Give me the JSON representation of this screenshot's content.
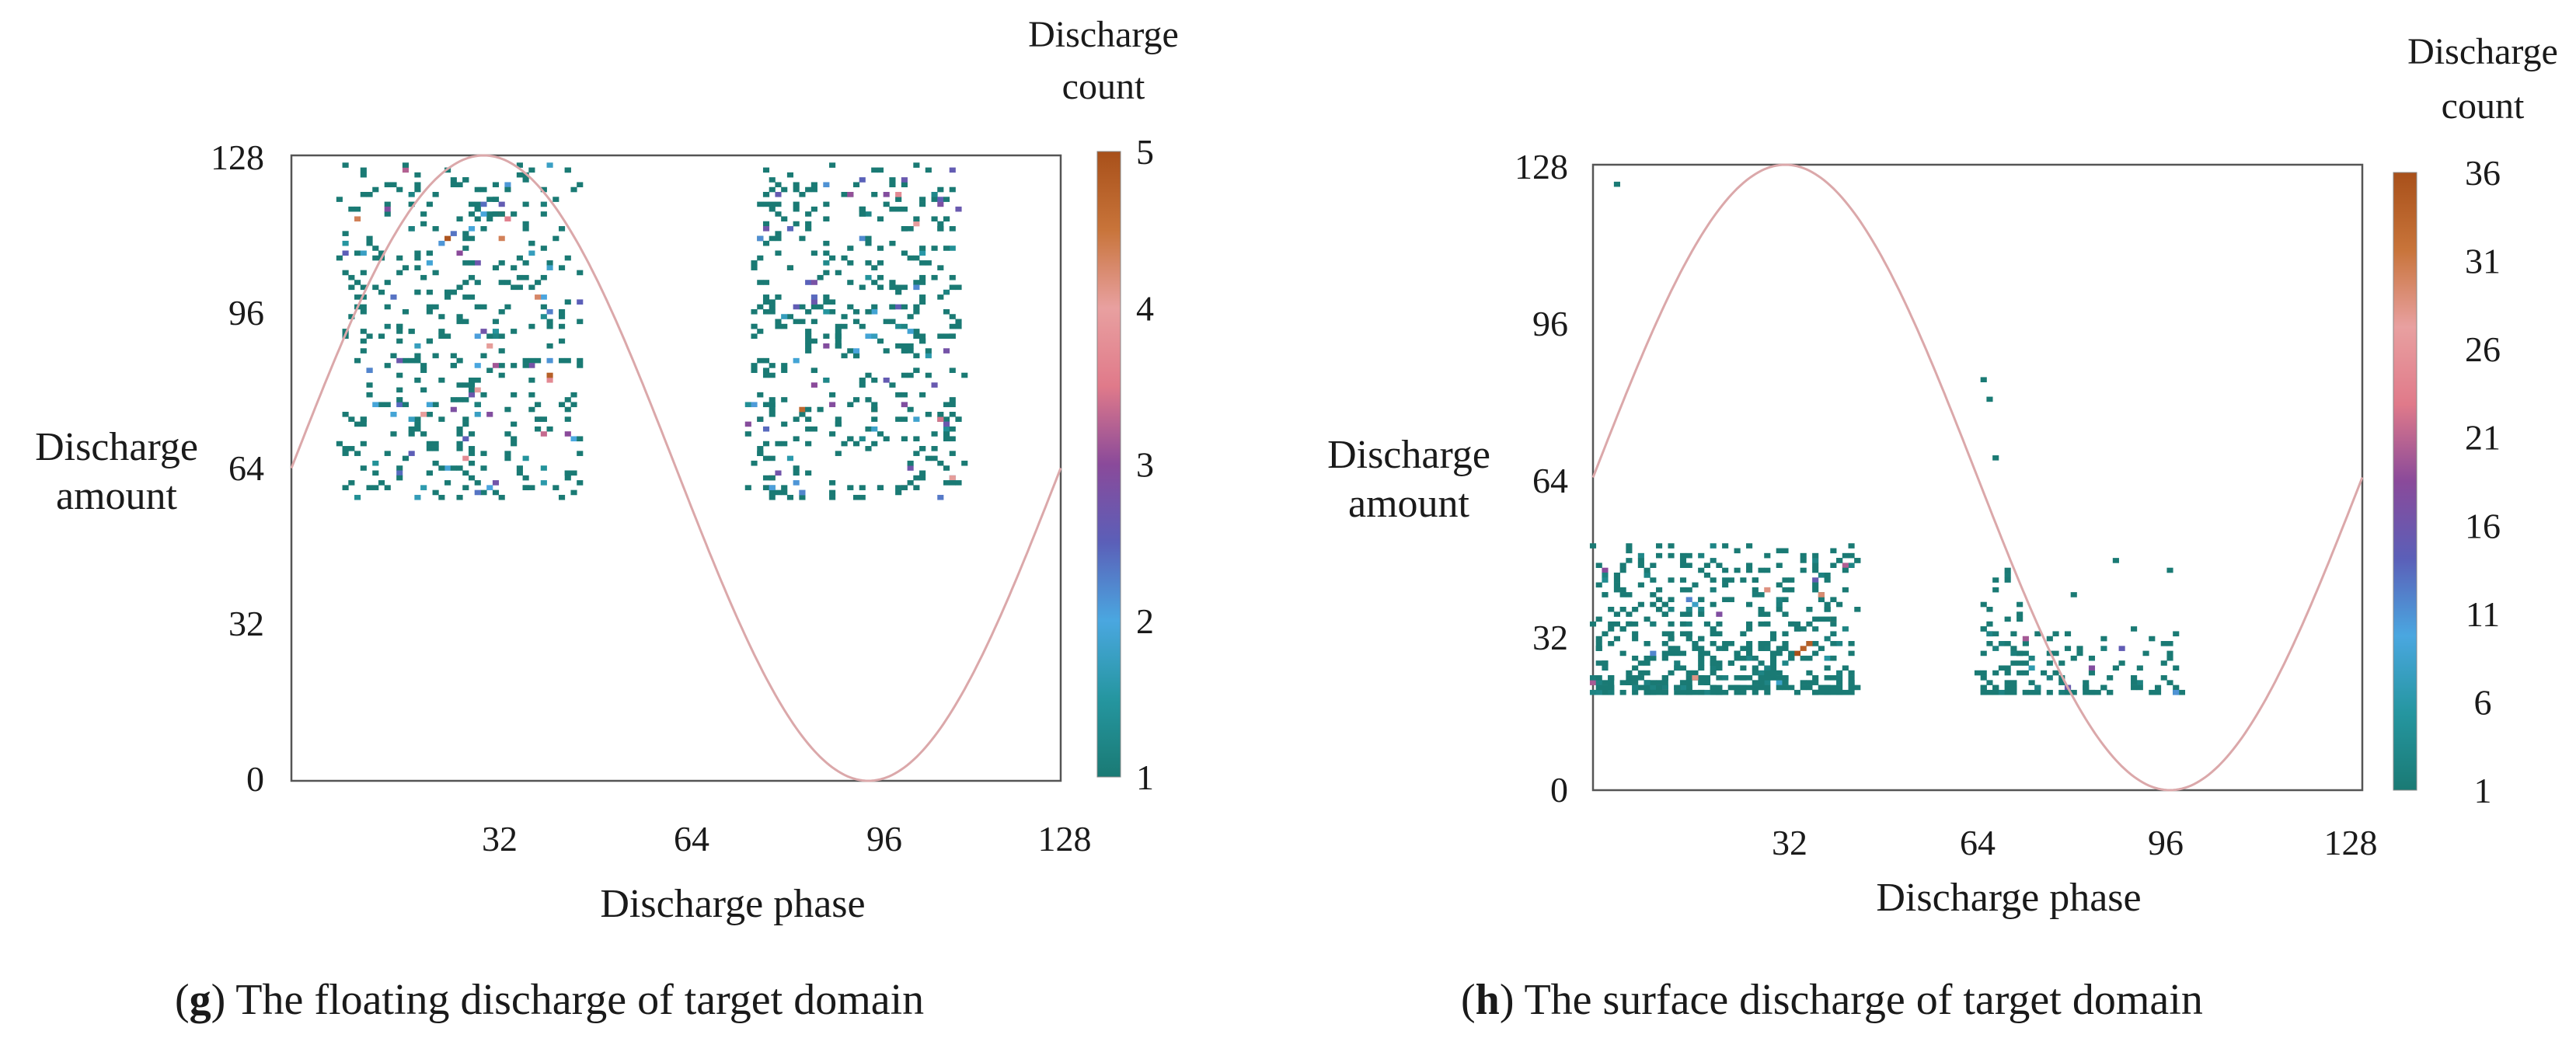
{
  "colors": {
    "scale": [
      "#1a7a74",
      "#2596a0",
      "#4aa7e0",
      "#5b5fb8",
      "#8a4a9a",
      "#e07a8a",
      "#e8a0a0",
      "#c8743a",
      "#a8501a"
    ],
    "sine": "#dba8aa",
    "axis": "#555555"
  },
  "chart_data": [
    {
      "type": "scatter",
      "panel": "g",
      "caption_letter": "g",
      "caption_text": "The floating discharge of target domain",
      "xlabel": "Discharge phase",
      "ylabel_lines": [
        "Discharge",
        "amount"
      ],
      "xlim": [
        0,
        128
      ],
      "ylim": [
        0,
        128
      ],
      "x_ticks": [
        32,
        64,
        96,
        128
      ],
      "y_ticks": [
        0,
        32,
        64,
        96,
        128
      ],
      "colorbar": {
        "title_lines": [
          "Discharge",
          "count"
        ],
        "range": [
          1,
          5
        ],
        "ticks": [
          1,
          2,
          3,
          4,
          5
        ]
      },
      "sine_curve": {
        "amplitude": 64,
        "offset": 64,
        "period": 128,
        "peak_phase": 32
      },
      "clusters": [
        {
          "phase_range": [
            8,
            48
          ],
          "amount_range": [
            58,
            126
          ],
          "count": 430,
          "seed": 11,
          "hot_fraction": 0.08,
          "max_count": 5
        },
        {
          "phase_range": [
            76,
            112
          ],
          "amount_range": [
            58,
            126
          ],
          "count": 440,
          "seed": 29,
          "hot_fraction": 0.09,
          "max_count": 5
        }
      ]
    },
    {
      "type": "scatter",
      "panel": "h",
      "caption_letter": "h",
      "caption_text": "The surface discharge of target domain",
      "xlabel": "Discharge phase",
      "ylabel_lines": [
        "Discharge",
        "amount"
      ],
      "xlim": [
        0,
        128
      ],
      "ylim": [
        0,
        128
      ],
      "x_ticks": [
        32,
        64,
        96,
        128
      ],
      "y_ticks": [
        0,
        32,
        64,
        96,
        128
      ],
      "colorbar": {
        "title_lines": [
          "Discharge",
          "count"
        ],
        "range": [
          1,
          36
        ],
        "ticks": [
          1,
          6,
          11,
          16,
          21,
          26,
          31,
          36
        ]
      },
      "sine_curve": {
        "amplitude": 64,
        "offset": 64,
        "period": 128,
        "peak_phase": 32
      },
      "clusters": [
        {
          "phase_range": [
            0,
            44
          ],
          "amount_range": [
            20,
            50
          ],
          "count": 520,
          "seed": 41,
          "hot_fraction": 0.05,
          "max_count": 36,
          "skew": 2.0
        },
        {
          "phase_range": [
            64,
            72
          ],
          "amount_range": [
            20,
            48
          ],
          "count": 60,
          "seed": 53,
          "hot_fraction": 0.0,
          "max_count": 6,
          "skew": 2.2
        },
        {
          "phase_range": [
            72,
            98
          ],
          "amount_range": [
            20,
            34
          ],
          "count": 80,
          "seed": 67,
          "hot_fraction": 0.08,
          "max_count": 20,
          "skew": 2.2
        }
      ],
      "points": [
        {
          "x": 4,
          "y": 124
        },
        {
          "x": 65,
          "y": 84
        },
        {
          "x": 66,
          "y": 80
        },
        {
          "x": 67,
          "y": 68
        },
        {
          "x": 69,
          "y": 45
        },
        {
          "x": 80,
          "y": 40
        },
        {
          "x": 87,
          "y": 47
        },
        {
          "x": 96,
          "y": 45
        }
      ]
    }
  ]
}
